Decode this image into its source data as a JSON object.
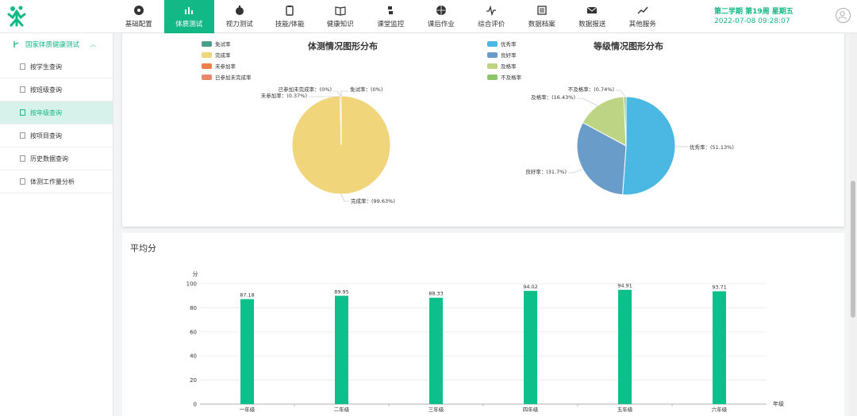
{
  "header": {
    "term": "第二学期 第19周 星期五",
    "datetime": "2022-07-08 09:28:07",
    "nav": [
      {
        "label": "基础配置",
        "icon": "dashboard-icon",
        "active": false
      },
      {
        "label": "体质测试",
        "icon": "bar-chart-icon",
        "active": true
      },
      {
        "label": "视力测试",
        "icon": "eye-icon",
        "active": false
      },
      {
        "label": "技能/体能",
        "icon": "clipboard-icon",
        "active": false
      },
      {
        "label": "健康知识",
        "icon": "book-icon",
        "active": false
      },
      {
        "label": "课堂监控",
        "icon": "python-icon",
        "active": false
      },
      {
        "label": "课后作业",
        "icon": "basketball-icon",
        "active": false
      },
      {
        "label": "综合评价",
        "icon": "pulse-icon",
        "active": false
      },
      {
        "label": "数据档案",
        "icon": "archive-icon",
        "active": false
      },
      {
        "label": "数据报送",
        "icon": "mail-icon",
        "active": false
      },
      {
        "label": "其他服务",
        "icon": "trend-icon",
        "active": false
      }
    ]
  },
  "sidebar": {
    "section": "国家体质健康测试",
    "items": [
      {
        "label": "按学生查询",
        "active": false
      },
      {
        "label": "按班级查询",
        "active": false
      },
      {
        "label": "按年级查询",
        "active": true
      },
      {
        "label": "按项目查询",
        "active": false
      },
      {
        "label": "历史数据查询",
        "active": false
      },
      {
        "label": "体测工作量分析",
        "active": false
      }
    ]
  },
  "colors": {
    "accent": "#12b886",
    "bar": "#0dc08b"
  },
  "chart_data": [
    {
      "type": "pie",
      "title": "体测情况图形分布",
      "legend": [
        "免试率",
        "完成率",
        "未参加率",
        "已参加未完成率"
      ],
      "colors": [
        "#4a9e8c",
        "#f0d57a",
        "#ef7f4a",
        "#e8876a"
      ],
      "slices": [
        {
          "label": "免试率",
          "value": 0,
          "text": "免试率：(0%)"
        },
        {
          "label": "完成率",
          "value": 99.63,
          "text": "完成率：(99.63%)"
        },
        {
          "label": "未参加率",
          "value": 0.37,
          "text": "未参加率：(0.37%)"
        },
        {
          "label": "已参加未完成率",
          "value": 0,
          "text": "已参加未完成率：(0%)"
        }
      ]
    },
    {
      "type": "pie",
      "title": "等级情况图形分布",
      "legend": [
        "优秀率",
        "良好率",
        "及格率",
        "不及格率"
      ],
      "colors": [
        "#4bb8e3",
        "#6a9cc9",
        "#bcd484",
        "#8cc46a"
      ],
      "slices": [
        {
          "label": "优秀率",
          "value": 51.13,
          "text": "优秀率：(51.13%)"
        },
        {
          "label": "良好率",
          "value": 31.7,
          "text": "良好率：(31.7%)"
        },
        {
          "label": "及格率",
          "value": 16.43,
          "text": "及格率：(16.43%)"
        },
        {
          "label": "不及格率",
          "value": 0.74,
          "text": "不及格率：(0.74%)"
        }
      ]
    },
    {
      "type": "bar",
      "title": "平均分",
      "ylabel": "分",
      "xlabel": "年级",
      "ylim": [
        0,
        100
      ],
      "yticks": [
        0,
        20,
        40,
        60,
        80,
        100
      ],
      "categories": [
        "一年级",
        "二年级",
        "三年级",
        "四年级",
        "五年级",
        "六年级"
      ],
      "values": [
        87.18,
        89.95,
        88.33,
        94.02,
        94.91,
        93.71
      ],
      "labels": [
        "87.18",
        "89.95",
        "88.33",
        "94.02",
        "94.91",
        "93.71"
      ]
    }
  ]
}
